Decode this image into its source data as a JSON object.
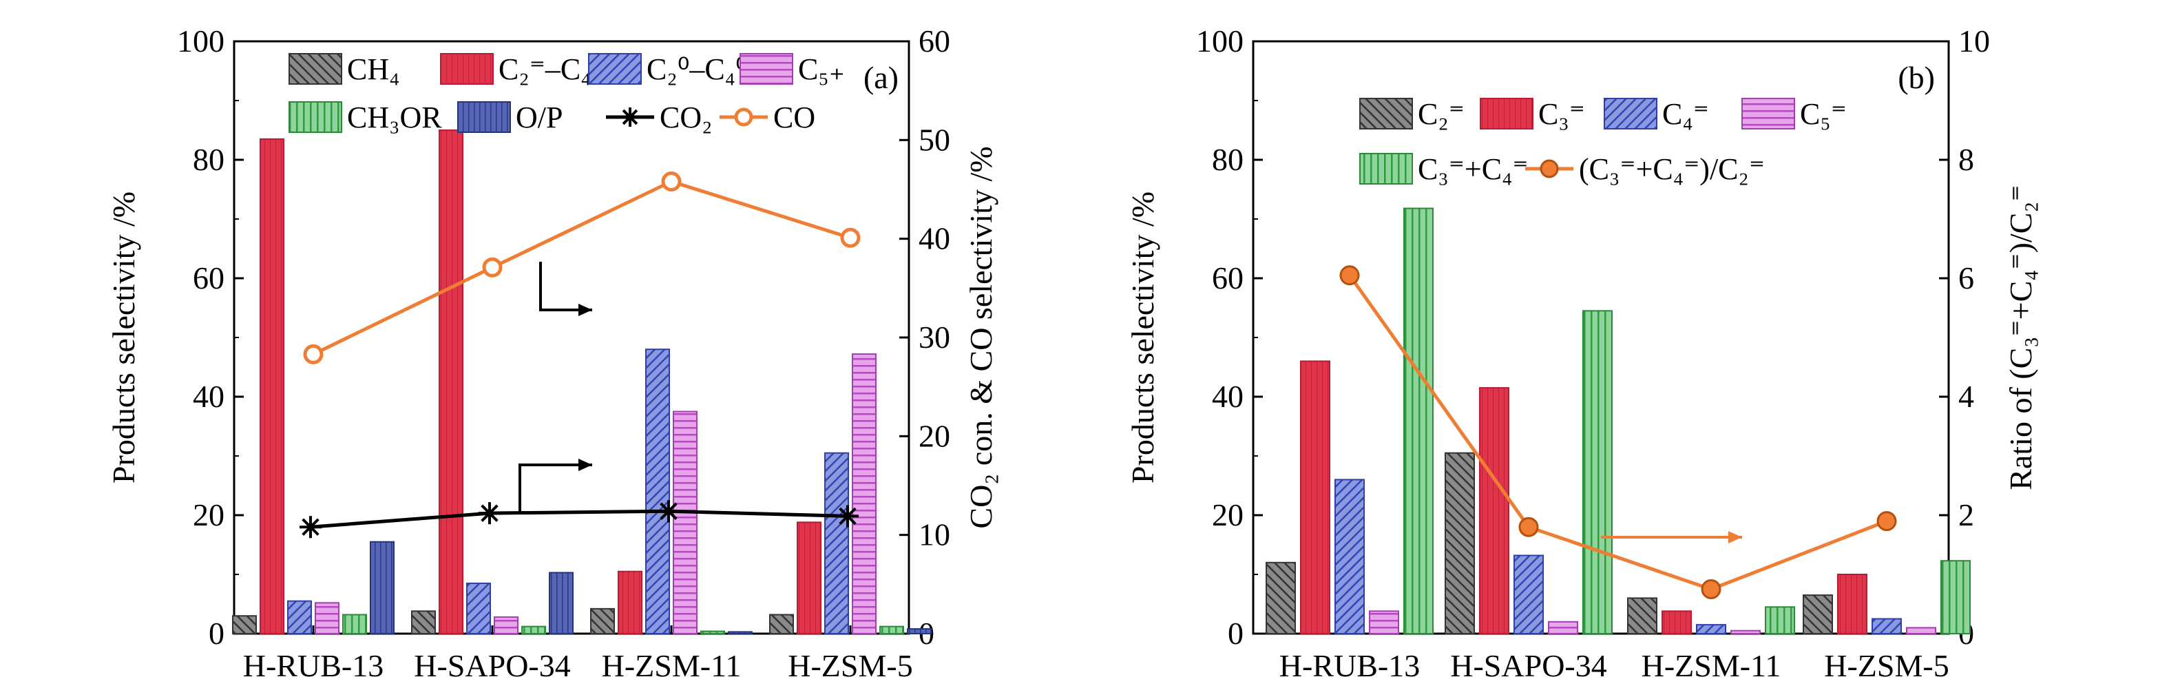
{
  "charts": [
    {
      "panel_label": "(a)",
      "type": "bar",
      "categories": [
        "H-RUB-13",
        "H-SAPO-34",
        "H-ZSM-11",
        "H-ZSM-5"
      ],
      "ylabel_left": "Products selectivity /%",
      "ylabel_right": "CO₂ con. & CO selectivity /%",
      "ylim_left": [
        0,
        100
      ],
      "ylim_right": [
        0,
        60
      ],
      "yticks_left": [
        "0",
        "20",
        "40",
        "60",
        "80",
        "100"
      ],
      "yticks_right": [
        "0",
        "10",
        "20",
        "30",
        "40",
        "50",
        "60"
      ],
      "legend": [
        {
          "label": "CH₄",
          "style": "grey"
        },
        {
          "label": "C₂⁼–C₄⁼",
          "style": "red"
        },
        {
          "label": "C₂⁰–C₄⁰",
          "style": "blue"
        },
        {
          "label": "C₅₊",
          "style": "purple"
        },
        {
          "label": "CH₃OR",
          "style": "green"
        },
        {
          "label": "O/P",
          "style": "navy"
        },
        {
          "label": "CO₂",
          "style": "line-star"
        },
        {
          "label": "CO",
          "style": "line-circle"
        }
      ],
      "bar_series": [
        {
          "name": "CH₄",
          "style": "grey",
          "values": [
            3,
            3.8,
            4.2,
            3.2
          ]
        },
        {
          "name": "C₂⁼–C₄⁼",
          "style": "red",
          "values": [
            83.5,
            85,
            10.5,
            18.8
          ]
        },
        {
          "name": "C₂⁰–C₄⁰",
          "style": "blue",
          "values": [
            5.5,
            8.5,
            48,
            30.5
          ]
        },
        {
          "name": "C₅₊",
          "style": "purple",
          "values": [
            5.2,
            2.8,
            37.5,
            47.2
          ]
        },
        {
          "name": "CH₃OR",
          "style": "green",
          "values": [
            3.2,
            1.2,
            0.4,
            1.2
          ]
        },
        {
          "name": "O/P",
          "style": "navy",
          "values": [
            15.5,
            10.3,
            0.3,
            0.8
          ]
        }
      ],
      "line_series": [
        {
          "name": "CO₂",
          "style": "line-star",
          "values": [
            10.8,
            12.2,
            12.4,
            11.9
          ]
        },
        {
          "name": "CO",
          "style": "line-circle",
          "values": [
            28.3,
            37.1,
            45.8,
            40.1
          ]
        }
      ]
    },
    {
      "panel_label": "(b)",
      "type": "bar",
      "categories": [
        "H-RUB-13",
        "H-SAPO-34",
        "H-ZSM-11",
        "H-ZSM-5"
      ],
      "ylabel_left": "Products selectivity /%",
      "ylabel_right": "Ratio of (C₃⁼+C₄⁼)/C₂⁼",
      "ylim_left": [
        0,
        100
      ],
      "ylim_right": [
        0,
        10
      ],
      "yticks_left": [
        "0",
        "20",
        "40",
        "60",
        "80",
        "100"
      ],
      "yticks_right": [
        "0",
        "2",
        "4",
        "6",
        "8",
        "10"
      ],
      "legend": [
        {
          "label": "C₂⁼",
          "style": "grey"
        },
        {
          "label": "C₃⁼",
          "style": "red"
        },
        {
          "label": "C₄⁼",
          "style": "blue"
        },
        {
          "label": "C₅⁼",
          "style": "purple"
        },
        {
          "label": "C₃⁼+C₄⁼",
          "style": "green"
        },
        {
          "label": "(C₃⁼+C₄⁼)/C₂⁼",
          "style": "line-circle-filled"
        }
      ],
      "bar_series": [
        {
          "name": "C₂⁼",
          "style": "grey",
          "values": [
            12,
            30.5,
            6,
            6.5
          ]
        },
        {
          "name": "C₃⁼",
          "style": "red",
          "values": [
            46,
            41.5,
            3.8,
            10
          ]
        },
        {
          "name": "C₄⁼",
          "style": "blue",
          "values": [
            26,
            13.2,
            1.5,
            2.5
          ]
        },
        {
          "name": "C₅⁼",
          "style": "purple",
          "values": [
            3.8,
            2,
            0.5,
            1
          ]
        },
        {
          "name": "C₃⁼+C₄⁼",
          "style": "green",
          "values": [
            71.8,
            54.5,
            4.5,
            12.3
          ]
        }
      ],
      "line_series": [
        {
          "name": "(C₃⁼+C₄⁼)/C₂⁼",
          "style": "line-circle-filled",
          "values": [
            6.05,
            1.8,
            0.75,
            1.9
          ]
        }
      ]
    }
  ],
  "colors": {
    "grey": "#707070",
    "red": "#e0344a",
    "blue": "#4a5fc2",
    "purple": "#c266cc",
    "green": "#3ba84a",
    "navy": "#3a4a9e",
    "orange": "#ef7d33",
    "black": "#000000"
  }
}
